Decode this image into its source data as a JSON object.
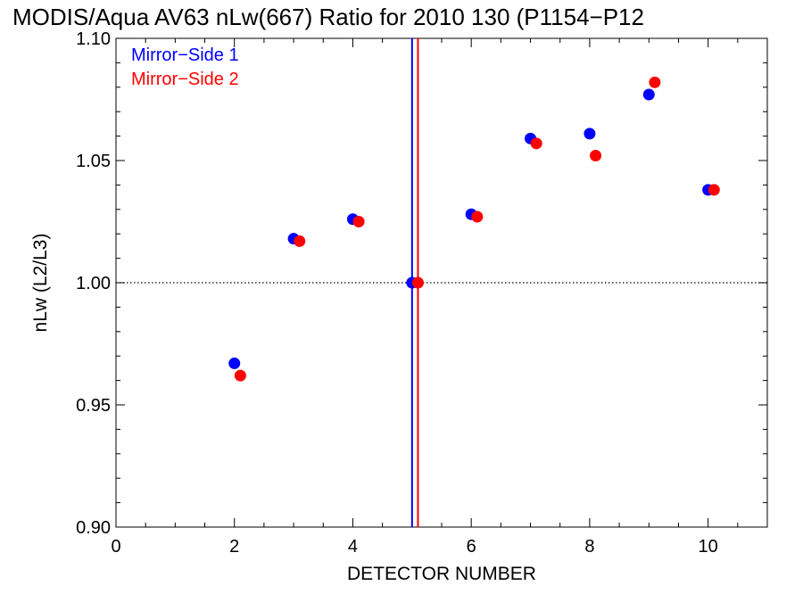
{
  "chart_data": {
    "type": "scatter",
    "title": "MODIS/Aqua AV63 nLw(667) Ratio for 2010 130 (P1154−P12",
    "xlabel": "DETECTOR NUMBER",
    "ylabel": "nLw (L2/L3)",
    "xlim": [
      0,
      11
    ],
    "ylim": [
      0.9,
      1.1
    ],
    "x_ticks": [
      0,
      2,
      4,
      6,
      8,
      10
    ],
    "x_tick_labels": [
      "0",
      "2",
      "4",
      "6",
      "8",
      "10"
    ],
    "x_minor_step": 0.5,
    "y_ticks": [
      0.9,
      0.95,
      1.0,
      1.05,
      1.1
    ],
    "y_tick_labels": [
      "0.90",
      "0.95",
      "1.00",
      "1.05",
      "1.10"
    ],
    "y_minor_step": 0.01,
    "reference_line": {
      "y": 1.0,
      "style": "dotted"
    },
    "legend_position": "top-left",
    "series": [
      {
        "name": "Mirror−Side 1",
        "color": "#0000ff",
        "x": [
          2,
          3,
          4,
          5,
          6,
          7,
          8,
          9,
          10
        ],
        "y": [
          0.967,
          1.018,
          1.026,
          1.0,
          1.028,
          1.059,
          1.061,
          1.077,
          1.038
        ],
        "marker_line_x": 5
      },
      {
        "name": "Mirror−Side 2",
        "color": "#ff0000",
        "x": [
          2.1,
          3.1,
          4.1,
          5.1,
          6.1,
          7.1,
          8.1,
          9.1,
          10.1
        ],
        "y": [
          0.962,
          1.017,
          1.025,
          1.0,
          1.027,
          1.057,
          1.052,
          1.082,
          1.038
        ],
        "marker_line_x": 5.1
      }
    ]
  }
}
